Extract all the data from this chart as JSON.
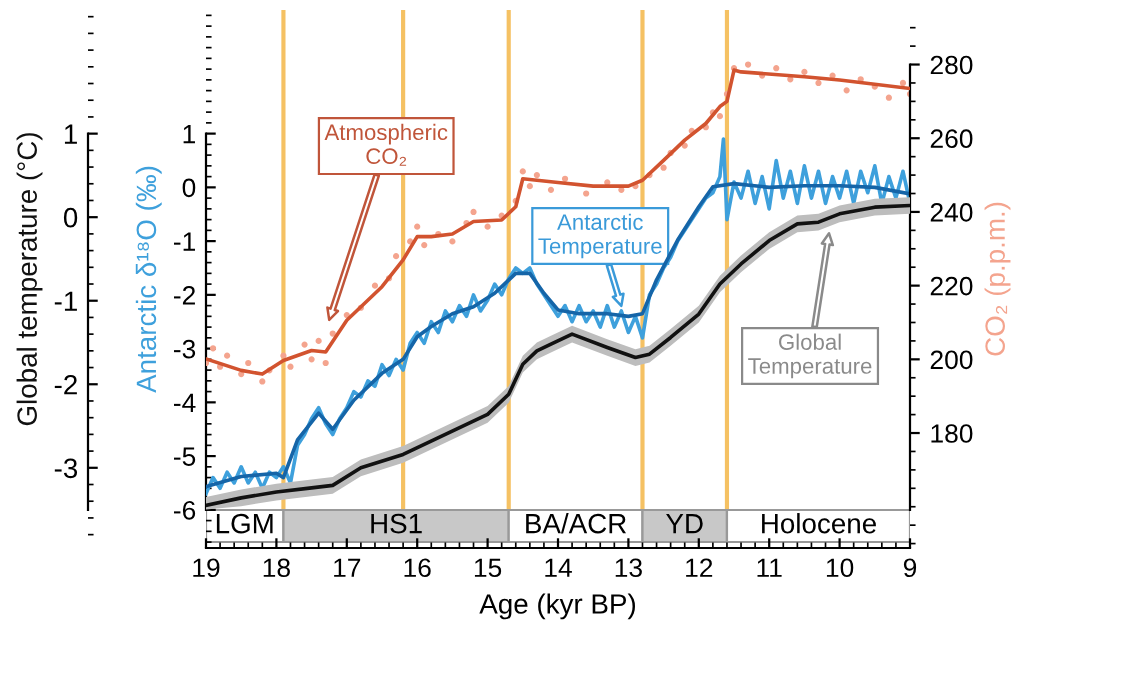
{
  "chart_data": {
    "type": "line",
    "xlabel": "Age (kyr BP)",
    "ylabel": "Antarctic δ¹⁸O (‰)",
    "y2label": "CO₂ (p.p.m.)",
    "y3label": "Global temperature (°C)",
    "xlim": [
      19,
      9
    ],
    "xticks": [
      19,
      18,
      17,
      16,
      15,
      14,
      13,
      12,
      11,
      10,
      9
    ],
    "ylim": [
      -6.71,
      3.3
    ],
    "yticks": [
      -6,
      -5,
      -4,
      -3,
      -2,
      -1,
      0,
      1
    ],
    "y2lim": [
      148.8,
      294.8
    ],
    "y2ticks": [
      180,
      200,
      220,
      240,
      260,
      280
    ],
    "y3lim": [
      -3.96,
      2.48
    ],
    "y3ticks": [
      -3,
      -2,
      -1,
      0,
      1
    ],
    "series": [
      {
        "type": "scatter",
        "axis": "y2",
        "marker": "circle",
        "color": "#f4a48e",
        "x": [
          19.0,
          18.9,
          18.8,
          18.7,
          18.5,
          18.4,
          18.2,
          18.1,
          17.9,
          17.8,
          17.6,
          17.5,
          17.4,
          17.3,
          17.2,
          17.0,
          16.8,
          16.6,
          16.4,
          16.3,
          16.1,
          16.0,
          15.9,
          15.7,
          15.5,
          15.3,
          15.2,
          15.0,
          14.8,
          14.6,
          14.5,
          14.4,
          14.3,
          14.1,
          13.9,
          13.6,
          13.3,
          13.1,
          12.9,
          12.7,
          12.5,
          12.4,
          12.2,
          12.1,
          11.9,
          11.8,
          11.7,
          11.6,
          11.5,
          11.3,
          11.1,
          10.9,
          10.7,
          10.5,
          10.3,
          10.1,
          9.9,
          9.7,
          9.5,
          9.3,
          9.1,
          9.0
        ],
        "values": [
          199,
          203,
          198,
          201,
          196,
          199,
          194,
          197,
          201,
          198,
          204,
          200,
          205,
          199,
          207,
          212,
          214,
          220,
          222,
          228,
          232,
          236,
          231,
          234,
          232,
          237,
          240,
          236,
          239,
          243,
          251,
          247,
          250,
          246,
          249,
          245,
          248,
          246,
          247,
          250,
          252,
          256,
          258,
          262,
          263,
          267,
          266,
          272,
          279,
          280,
          277,
          279,
          276,
          278,
          275,
          277,
          273,
          276,
          274,
          271,
          275,
          272
        ]
      },
      {
        "axis": "y2",
        "color": "#d2532f",
        "x": [
          19.0,
          18.5,
          18.2,
          17.9,
          17.5,
          17.3,
          17.0,
          16.5,
          16.2,
          16.0,
          15.8,
          15.5,
          15.2,
          14.8,
          14.6,
          14.5,
          14.3,
          14.0,
          13.5,
          13.0,
          12.8,
          12.5,
          12.2,
          11.9,
          11.7,
          11.6,
          11.5,
          11.4,
          10.5,
          10.0,
          9.0
        ],
        "values": [
          200.1,
          197,
          196,
          199.7,
          202.4,
          202,
          210.6,
          219.7,
          227,
          233.3,
          233.3,
          234,
          237.4,
          237.8,
          241.4,
          249,
          248.6,
          248,
          247,
          247,
          248.6,
          254,
          259.5,
          264,
          268.6,
          270,
          278.5,
          278,
          276.7,
          275.8,
          273.5
        ]
      },
      {
        "axis": "y",
        "color": "#3ea0dc",
        "x": [
          19.0,
          18.9,
          18.8,
          18.7,
          18.6,
          18.5,
          18.4,
          18.3,
          18.2,
          18.1,
          18.0,
          17.9,
          17.8,
          17.7,
          17.6,
          17.5,
          17.4,
          17.3,
          17.2,
          17.1,
          17.0,
          16.9,
          16.8,
          16.7,
          16.6,
          16.5,
          16.4,
          16.3,
          16.2,
          16.1,
          16.0,
          15.9,
          15.8,
          15.7,
          15.6,
          15.5,
          15.4,
          15.3,
          15.2,
          15.1,
          15.0,
          14.9,
          14.8,
          14.7,
          14.6,
          14.5,
          14.4,
          14.3,
          14.2,
          14.1,
          14.0,
          13.9,
          13.8,
          13.7,
          13.6,
          13.5,
          13.4,
          13.3,
          13.2,
          13.1,
          13.0,
          12.9,
          12.8,
          12.7,
          12.6,
          12.5,
          12.4,
          12.3,
          12.2,
          12.1,
          12.0,
          11.9,
          11.8,
          11.7,
          11.65,
          11.6,
          11.5,
          11.4,
          11.3,
          11.2,
          11.1,
          11.0,
          10.9,
          10.8,
          10.7,
          10.6,
          10.5,
          10.4,
          10.3,
          10.2,
          10.1,
          10.0,
          9.9,
          9.8,
          9.7,
          9.6,
          9.5,
          9.4,
          9.3,
          9.2,
          9.1,
          9.0
        ],
        "values": [
          -5.7,
          -5.4,
          -5.6,
          -5.3,
          -5.5,
          -5.2,
          -5.5,
          -5.3,
          -5.6,
          -5.3,
          -5.4,
          -5.2,
          -5.5,
          -4.8,
          -4.6,
          -4.3,
          -4.1,
          -4.4,
          -4.6,
          -4.3,
          -4.1,
          -3.8,
          -3.9,
          -3.6,
          -3.7,
          -3.3,
          -3.5,
          -3.2,
          -3.4,
          -2.9,
          -2.7,
          -2.9,
          -2.5,
          -2.7,
          -2.3,
          -2.5,
          -2.2,
          -2.4,
          -2.0,
          -2.3,
          -2.1,
          -1.8,
          -2.0,
          -1.7,
          -1.5,
          -1.6,
          -1.5,
          -1.8,
          -2.0,
          -2.2,
          -2.4,
          -2.2,
          -2.5,
          -2.2,
          -2.5,
          -2.3,
          -2.6,
          -2.2,
          -2.6,
          -2.3,
          -2.7,
          -2.4,
          -2.8,
          -2.0,
          -1.8,
          -1.5,
          -1.3,
          -1.0,
          -0.8,
          -0.6,
          -0.4,
          -0.2,
          -0.1,
          0.2,
          0.9,
          -0.6,
          0.1,
          -0.2,
          0.3,
          -0.3,
          0.2,
          -0.4,
          0.5,
          -0.2,
          0.3,
          -0.3,
          0.4,
          -0.2,
          0.3,
          -0.3,
          0.2,
          -0.2,
          0.3,
          -0.3,
          0.3,
          -0.1,
          0.4,
          -0.3,
          0.2,
          -0.2,
          0.3,
          -0.3
        ]
      },
      {
        "axis": "y",
        "color": "#1565a8",
        "x": [
          19.0,
          18.5,
          18.0,
          17.9,
          17.7,
          17.4,
          17.2,
          16.9,
          16.5,
          16.2,
          16.0,
          15.8,
          15.5,
          15.2,
          14.9,
          14.6,
          14.4,
          14.2,
          14.0,
          13.7,
          13.3,
          13.0,
          12.8,
          12.6,
          12.3,
          12.0,
          11.8,
          11.5,
          11.0,
          10.5,
          10.0,
          9.5,
          9.0
        ],
        "values": [
          -5.57,
          -5.38,
          -5.32,
          -5.4,
          -4.7,
          -4.2,
          -4.5,
          -3.96,
          -3.46,
          -3.2,
          -2.78,
          -2.59,
          -2.35,
          -2.22,
          -1.97,
          -1.6,
          -1.6,
          -1.97,
          -2.28,
          -2.35,
          -2.35,
          -2.4,
          -2.35,
          -1.72,
          -0.98,
          -0.36,
          0.01,
          0.07,
          0.0,
          0.03,
          0.03,
          0.0,
          -0.12
        ]
      },
      {
        "axis": "y3",
        "color": "#111111",
        "x": [
          19.0,
          18.5,
          18.0,
          17.5,
          17.2,
          16.8,
          16.2,
          15.6,
          15.0,
          14.7,
          14.5,
          14.3,
          14.1,
          13.8,
          13.3,
          12.9,
          12.7,
          12.4,
          12.0,
          11.7,
          11.4,
          11.0,
          10.6,
          10.3,
          10.0,
          9.5,
          9.0
        ],
        "values": [
          -3.45,
          -3.36,
          -3.29,
          -3.24,
          -3.21,
          -3.0,
          -2.84,
          -2.6,
          -2.36,
          -2.12,
          -1.76,
          -1.6,
          -1.52,
          -1.4,
          -1.56,
          -1.68,
          -1.64,
          -1.44,
          -1.16,
          -0.8,
          -0.56,
          -0.28,
          -0.08,
          -0.06,
          0.04,
          0.12,
          0.14
        ],
        "lower": [
          -3.5,
          -3.46,
          -3.39,
          -3.34,
          -3.31,
          -3.1,
          -2.94,
          -2.7,
          -2.46,
          -2.22,
          -1.86,
          -1.7,
          -1.62,
          -1.5,
          -1.66,
          -1.78,
          -1.74,
          -1.54,
          -1.26,
          -0.9,
          -0.66,
          -0.38,
          -0.18,
          -0.16,
          -0.06,
          0.02,
          0.04
        ],
        "upper": [
          -3.35,
          -3.26,
          -3.19,
          -3.14,
          -3.11,
          -2.9,
          -2.74,
          -2.5,
          -2.26,
          -2.02,
          -1.66,
          -1.5,
          -1.42,
          -1.3,
          -1.46,
          -1.58,
          -1.54,
          -1.34,
          -1.06,
          -0.7,
          -0.46,
          -0.18,
          0.02,
          0.04,
          0.14,
          0.22,
          0.24
        ]
      }
    ],
    "ref_lines": [
      {
        "axis": "x",
        "value": 17.9,
        "color": "#f5c163"
      },
      {
        "axis": "x",
        "value": 16.2,
        "color": "#f5c163"
      },
      {
        "axis": "x",
        "value": 14.7,
        "color": "#f5c163"
      },
      {
        "axis": "x",
        "value": 12.8,
        "color": "#f5c163"
      },
      {
        "axis": "x",
        "value": 11.6,
        "color": "#f5c163"
      }
    ],
    "bands": [
      {
        "axis": "x",
        "from": 19,
        "to": 17.9,
        "label": "LGM",
        "color": "#ffffff"
      },
      {
        "axis": "x",
        "from": 17.9,
        "to": 14.7,
        "label": "HS1",
        "color": "#c8c8c8"
      },
      {
        "axis": "x",
        "from": 14.7,
        "to": 12.8,
        "label": "BA/ACR",
        "color": "#ffffff"
      },
      {
        "axis": "x",
        "from": 12.8,
        "to": 11.6,
        "label": "YD",
        "color": "#c8c8c8"
      },
      {
        "axis": "x",
        "from": 11.6,
        "to": 9,
        "label": "Holocene",
        "color": "#ffffff"
      }
    ],
    "annotations": [
      "Atmospheric\nCO₂",
      "Antarctic\nTemperature",
      "Global\nTemperature"
    ]
  }
}
